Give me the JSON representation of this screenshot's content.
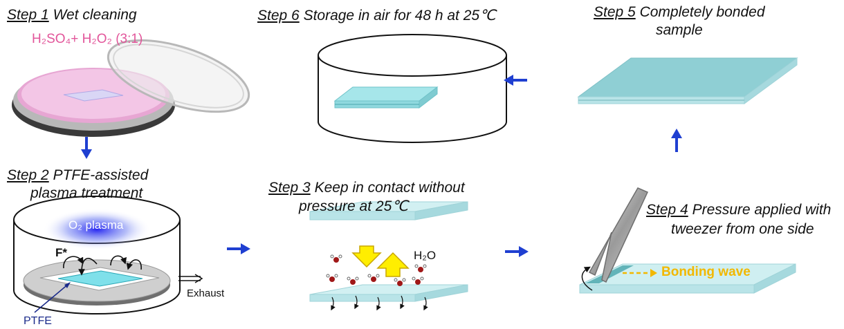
{
  "step1": {
    "label": "Step 1",
    "title": "Wet cleaning",
    "chem_text": "H₂SO₄+ H₂O₂ (3:1)"
  },
  "step2": {
    "label": "Step 2",
    "title_line1": "PTFE-assisted",
    "title_line2": "plasma treatment",
    "plasma_label": "O₂ plasma",
    "radical_label": "F*",
    "exhaust_label": "Exhaust",
    "ptfe_label": "PTFE"
  },
  "step3": {
    "label": "Step 3",
    "title_line1": "Keep in contact without",
    "title_line2": "pressure at 25℃",
    "water_label": "H₂O"
  },
  "step4": {
    "label": "Step 4",
    "title_line1": "Pressure applied with",
    "title_line2": "tweezer from one side",
    "wave_label": "Bonding wave"
  },
  "step5": {
    "label": "Step 5",
    "title_line1": "Completely bonded",
    "title_line2": "sample"
  },
  "step6": {
    "label": "Step 6",
    "title": "Storage in air for 48 h at 25℃"
  },
  "colors": {
    "arrow": "#1f3fd1",
    "glass": "#bfe9ec",
    "glass_dark": "#8fcfd4",
    "plasma": "#2a2ae6",
    "pink": "#e2559a",
    "wave": "#f2b800"
  }
}
